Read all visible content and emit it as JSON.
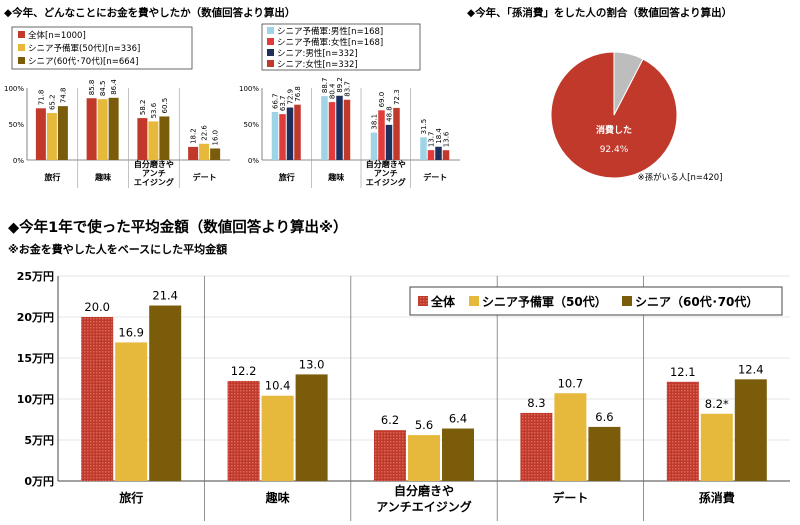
{
  "colors": {
    "red": "#c0392b",
    "yellow": "#e6b83c",
    "olive": "#7a5c0a",
    "lightblue": "#9fd3e6",
    "navy": "#1f2f5c",
    "pink": "#e23b3b",
    "grey": "#bdbdbd",
    "axis": "#666666"
  },
  "top_left": {
    "title": "◆今年、どんなことにお金を費やしたか（数値回答より算出）",
    "legend": [
      "全体[n=1000]",
      "シニア予備軍(50代)[n=336]",
      "シニア(60代･70代)[n=664]"
    ],
    "yticks": [
      "100%",
      "50%",
      "0%"
    ],
    "chart_data": {
      "type": "bar",
      "ylim": [
        0,
        100
      ],
      "categories": [
        "旅行",
        "趣味",
        "自分磨きや\nアンチ\nエイジング",
        "デート"
      ],
      "series": [
        {
          "name": "全体[n=1000]",
          "values": [
            71.8,
            85.8,
            58.2,
            18.2
          ]
        },
        {
          "name": "シニア予備軍(50代)[n=336]",
          "values": [
            65.2,
            84.5,
            53.6,
            22.6
          ]
        },
        {
          "name": "シニア(60代･70代)[n=664]",
          "values": [
            74.8,
            86.4,
            60.5,
            16.0
          ]
        }
      ]
    }
  },
  "top_mid": {
    "legend": [
      "シニア予備軍:男性[n=168]",
      "シニア予備軍:女性[n=168]",
      "シニア:男性[n=332]",
      "シニア:女性[n=332]"
    ],
    "yticks": [
      "100%",
      "50%",
      "0%"
    ],
    "chart_data": {
      "type": "bar",
      "ylim": [
        0,
        100
      ],
      "categories": [
        "旅行",
        "趣味",
        "自分磨きや\nアンチ\nエイジング",
        "デート"
      ],
      "series": [
        {
          "name": "シニア予備軍:男性[n=168]",
          "values": [
            66.7,
            88.7,
            38.1,
            31.5
          ]
        },
        {
          "name": "シニア予備軍:女性[n=168]",
          "values": [
            63.7,
            80.4,
            69.0,
            13.7
          ]
        },
        {
          "name": "シニア:男性[n=332]",
          "values": [
            72.9,
            89.2,
            48.8,
            18.4
          ]
        },
        {
          "name": "シニア:女性[n=332]",
          "values": [
            76.8,
            83.7,
            72.3,
            13.6
          ]
        }
      ]
    }
  },
  "top_right": {
    "title": "◆今年、「孫消費」をした人の割合（数値回答より算出）",
    "slice_label": "消費した",
    "slice_value": "92.4%",
    "note": "※孫がいる人[n=420]",
    "chart_data": {
      "type": "pie",
      "slices": [
        {
          "label": "消費した",
          "value": 92.4
        },
        {
          "label": "",
          "value": 7.6
        }
      ]
    }
  },
  "bottom": {
    "title": "◆今年1年で使った平均金額（数値回答より算出※）",
    "subtitle": "※お金を費やした人をベースにした平均金額",
    "legend": [
      "全体",
      "シニア予備軍（50代）",
      "シニア（60代･70代）"
    ],
    "yticks": [
      "25万円",
      "20万円",
      "15万円",
      "10万円",
      "5万円",
      "0万円"
    ],
    "chart_data": {
      "type": "bar",
      "ylim": [
        0,
        25
      ],
      "categories": [
        "旅行",
        "趣味",
        "自分磨きや\nアンチエイジング",
        "デート",
        "孫消費"
      ],
      "series": [
        {
          "name": "全体",
          "values": [
            20.0,
            12.2,
            6.2,
            8.3,
            12.1
          ],
          "labels": [
            "20.0",
            "12.2",
            "6.2",
            "8.3",
            "12.1"
          ]
        },
        {
          "name": "シニア予備軍（50代）",
          "values": [
            16.9,
            10.4,
            5.6,
            10.7,
            8.2
          ],
          "labels": [
            "16.9",
            "10.4",
            "5.6",
            "10.7",
            "8.2*"
          ]
        },
        {
          "name": "シニア（60代･70代）",
          "values": [
            21.4,
            13.0,
            6.4,
            6.6,
            12.4
          ],
          "labels": [
            "21.4",
            "13.0",
            "6.4",
            "6.6",
            "12.4"
          ]
        }
      ]
    }
  }
}
